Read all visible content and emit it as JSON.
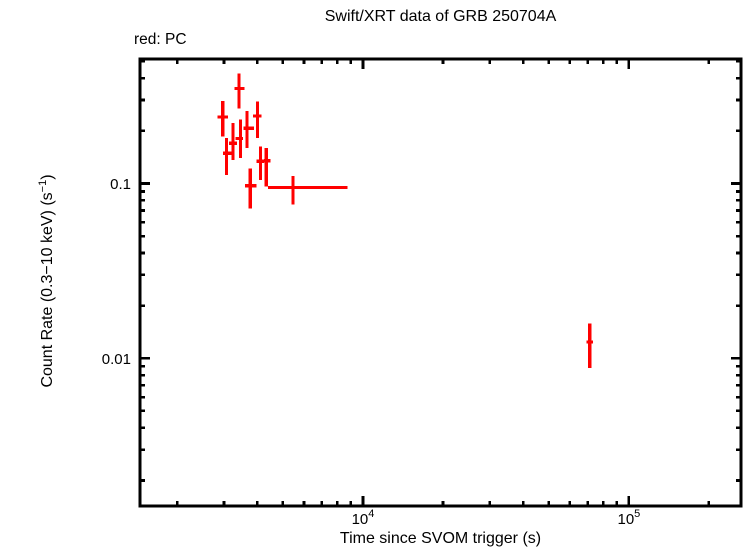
{
  "figure": {
    "title": "Swift/XRT data of GRB 250704A",
    "mode_legend": "red: PC",
    "xlabel": "Time since SVOM trigger (s)",
    "ylabel": {
      "pre": "Count Rate (0.3−10 keV) (s",
      "sup": "−1",
      "post": ")"
    }
  },
  "chart_data": {
    "type": "scatter",
    "title": "Swift/XRT data of GRB 250704A",
    "xlabel": "Time since SVOM trigger (s)",
    "ylabel": "Count Rate (0.3−10 keV) (s^−1)",
    "x_scale": "log",
    "y_scale": "log",
    "xlim": [
      1450,
      264000
    ],
    "ylim": [
      0.00143,
      0.515
    ],
    "grid": false,
    "legend_position": "top-left-above-frame",
    "legend": [
      {
        "label": "red: PC",
        "mode": "PC",
        "color": "#ff0000"
      }
    ],
    "x_major_ticks": [
      {
        "value": 10000,
        "base": "10",
        "exp": "4"
      },
      {
        "value": 100000,
        "base": "10",
        "exp": "5"
      }
    ],
    "x_minor_ticks": [
      2000,
      3000,
      4000,
      5000,
      6000,
      7000,
      8000,
      9000,
      20000,
      30000,
      40000,
      50000,
      60000,
      70000,
      80000,
      90000,
      200000
    ],
    "y_major_ticks": [
      {
        "value": 0.1,
        "label": "0.1"
      },
      {
        "value": 0.01,
        "label": "0.01"
      }
    ],
    "y_minor_ticks": [
      0.002,
      0.003,
      0.004,
      0.005,
      0.006,
      0.007,
      0.008,
      0.009,
      0.02,
      0.03,
      0.04,
      0.05,
      0.06,
      0.07,
      0.08,
      0.09,
      0.2,
      0.3,
      0.4,
      0.5
    ],
    "series": [
      {
        "name": "PC",
        "color": "#ff0000",
        "marker": "error-bar-cross",
        "points": [
          {
            "t": 2970,
            "t_lo": 2840,
            "t_hi": 3110,
            "rate": 0.24,
            "rate_lo": 0.186,
            "rate_hi": 0.297
          },
          {
            "t": 3065,
            "t_lo": 2980,
            "t_hi": 3200,
            "rate": 0.149,
            "rate_lo": 0.112,
            "rate_hi": 0.182
          },
          {
            "t": 3245,
            "t_lo": 3135,
            "t_hi": 3355,
            "rate": 0.17,
            "rate_lo": 0.136,
            "rate_hi": 0.221
          },
          {
            "t": 3415,
            "t_lo": 3290,
            "t_hi": 3590,
            "rate": 0.349,
            "rate_lo": 0.268,
            "rate_hi": 0.425
          },
          {
            "t": 3460,
            "t_lo": 3310,
            "t_hi": 3540,
            "rate": 0.181,
            "rate_lo": 0.14,
            "rate_hi": 0.232
          },
          {
            "t": 3660,
            "t_lo": 3550,
            "t_hi": 3890,
            "rate": 0.207,
            "rate_lo": 0.159,
            "rate_hi": 0.259
          },
          {
            "t": 3770,
            "t_lo": 3600,
            "t_hi": 3970,
            "rate": 0.097,
            "rate_lo": 0.072,
            "rate_hi": 0.122
          },
          {
            "t": 4010,
            "t_lo": 3860,
            "t_hi": 4160,
            "rate": 0.243,
            "rate_lo": 0.182,
            "rate_hi": 0.294
          },
          {
            "t": 4120,
            "t_lo": 3970,
            "t_hi": 4240,
            "rate": 0.134,
            "rate_lo": 0.105,
            "rate_hi": 0.163
          },
          {
            "t": 4330,
            "t_lo": 4240,
            "t_hi": 4480,
            "rate": 0.135,
            "rate_lo": 0.096,
            "rate_hi": 0.159
          },
          {
            "t": 5455,
            "t_lo": 4400,
            "t_hi": 8760,
            "rate": 0.095,
            "rate_lo": 0.076,
            "rate_hi": 0.11
          },
          {
            "t": 71300,
            "t_lo": 69300,
            "t_hi": 73350,
            "rate": 0.0124,
            "rate_lo": 0.0088,
            "rate_hi": 0.0158
          }
        ]
      }
    ]
  }
}
